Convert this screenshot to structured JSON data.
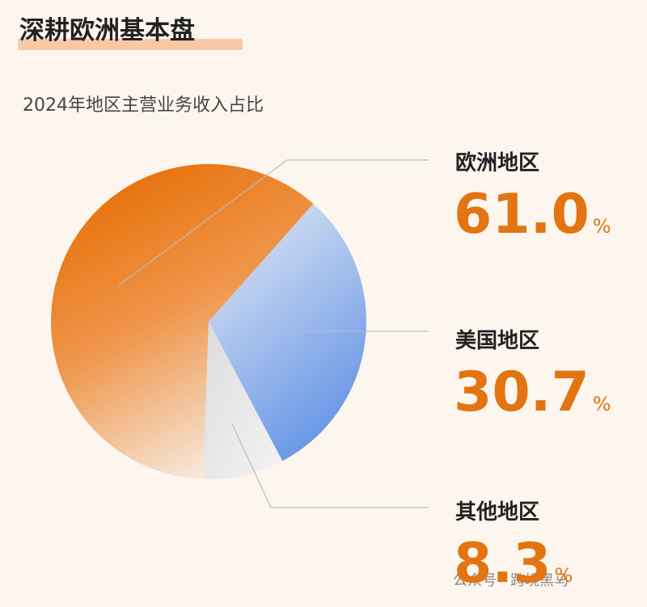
{
  "chart_data": {
    "type": "pie",
    "title": "深耕欧洲基本盘",
    "subtitle": "2024年地区主营业务收入占比",
    "categories": [
      "欧洲地区",
      "美国地区",
      "其他地区"
    ],
    "values": [
      61.0,
      30.7,
      8.3
    ],
    "value_labels": [
      "61.0%",
      "30.7%",
      "8.3%"
    ],
    "colors": [
      "#e8730f",
      "#6b98e6",
      "#dedede"
    ],
    "watermark": "公众号 · 跨境黑马"
  }
}
